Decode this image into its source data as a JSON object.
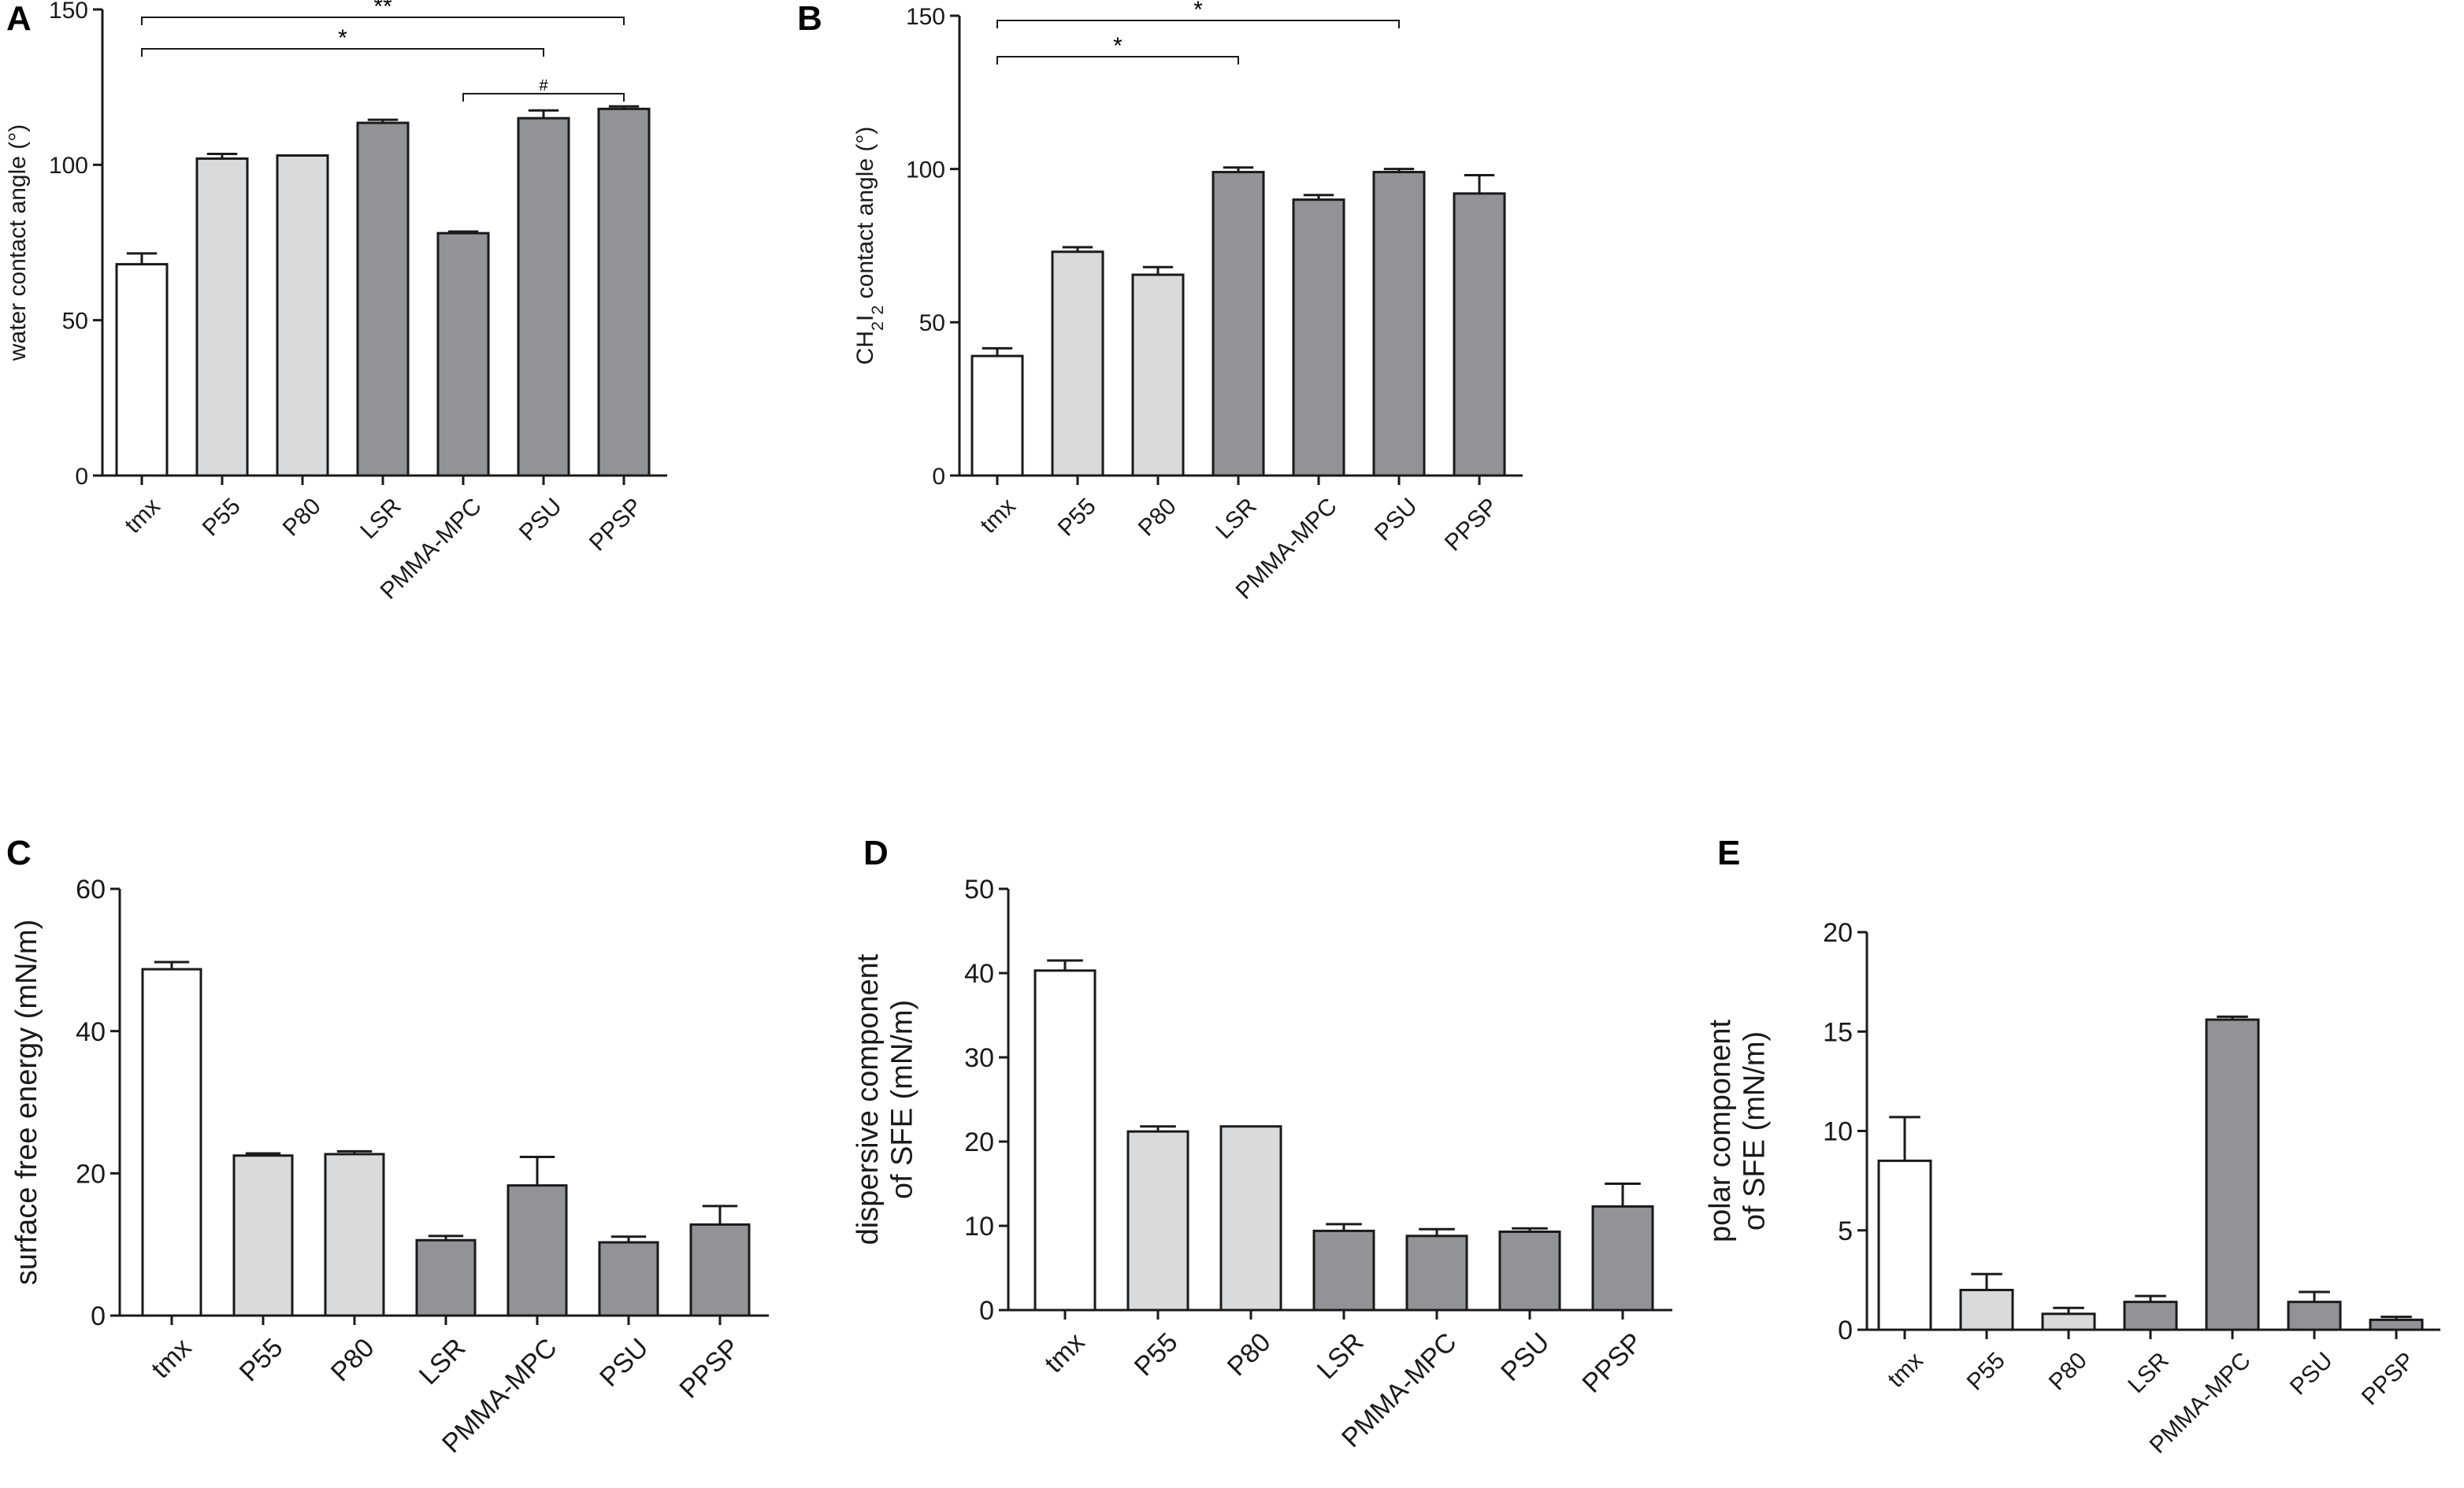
{
  "figure": {
    "colors": {
      "tmx": "#ffffff",
      "light": "#d9dadc",
      "dark": "#929397",
      "stroke": "#1a1a1a"
    }
  },
  "chart_data": [
    {
      "panel": "A",
      "type": "bar",
      "ylabel": "water contact angle (°)",
      "ylim": [
        0,
        150
      ],
      "yticks": [
        0,
        50,
        100,
        150
      ],
      "categories": [
        "tmx",
        "P55",
        "P80",
        "LSR",
        "PMMA-MPC",
        "PSU",
        "PPSP"
      ],
      "values": [
        68,
        102,
        103,
        113.5,
        78,
        115,
        118
      ],
      "errors": [
        3.5,
        1.5,
        0,
        1,
        0.5,
        2.5,
        0.8
      ],
      "bar_colors": [
        "tmx",
        "light",
        "light",
        "dark",
        "dark",
        "dark",
        "dark"
      ],
      "significance": [
        {
          "from": 0,
          "to": 6,
          "label": "**"
        },
        {
          "from": 0,
          "to": 5,
          "label": "*"
        },
        {
          "from": 4,
          "to": 6,
          "label": "#"
        }
      ]
    },
    {
      "panel": "B",
      "type": "bar",
      "ylabel_parts": [
        "CH",
        "2",
        "I",
        "2",
        " contact angle (°)"
      ],
      "ylim": [
        0,
        150
      ],
      "yticks": [
        0,
        50,
        100,
        150
      ],
      "categories": [
        "tmx",
        "P55",
        "P80",
        "LSR",
        "PMMA-MPC",
        "PSU",
        "PPSP"
      ],
      "values": [
        39,
        73,
        65.5,
        99,
        90,
        99,
        92
      ],
      "errors": [
        2.5,
        1.5,
        2.5,
        1.5,
        1.5,
        1,
        6
      ],
      "bar_colors": [
        "tmx",
        "light",
        "light",
        "dark",
        "dark",
        "dark",
        "dark"
      ],
      "significance": [
        {
          "from": 0,
          "to": 5,
          "label": "*"
        },
        {
          "from": 0,
          "to": 3,
          "label": "*"
        }
      ]
    },
    {
      "panel": "C",
      "type": "bar",
      "ylabel": "surface free energy (mN/m)",
      "ylim": [
        0,
        60
      ],
      "yticks": [
        0,
        20,
        40,
        60
      ],
      "categories": [
        "tmx",
        "P55",
        "P80",
        "LSR",
        "PMMA-MPC",
        "PSU",
        "PPSP"
      ],
      "values": [
        48.7,
        22.5,
        22.7,
        10.6,
        18.3,
        10.3,
        12.8
      ],
      "errors": [
        1.0,
        0.3,
        0.4,
        0.6,
        4.0,
        0.8,
        2.6
      ],
      "bar_colors": [
        "tmx",
        "light",
        "light",
        "dark",
        "dark",
        "dark",
        "dark"
      ],
      "significance": []
    },
    {
      "panel": "D",
      "type": "bar",
      "ylabel_lines": [
        "dispersive component",
        "of SFE (mN/m)"
      ],
      "ylim": [
        0,
        50
      ],
      "yticks": [
        0,
        10,
        20,
        30,
        40,
        50
      ],
      "categories": [
        "tmx",
        "P55",
        "P80",
        "LSR",
        "PMMA-MPC",
        "PSU",
        "PPSP"
      ],
      "values": [
        40.3,
        21.2,
        21.8,
        9.4,
        8.8,
        9.3,
        12.3
      ],
      "errors": [
        1.2,
        0.6,
        0,
        0.8,
        0.8,
        0.4,
        2.7
      ],
      "bar_colors": [
        "tmx",
        "light",
        "light",
        "dark",
        "dark",
        "dark",
        "dark"
      ],
      "significance": []
    },
    {
      "panel": "E",
      "type": "bar",
      "ylabel_lines": [
        "polar component",
        "of SFE (mN/m)"
      ],
      "ylim": [
        0,
        20
      ],
      "yticks": [
        0,
        5,
        10,
        15,
        20
      ],
      "categories": [
        "tmx",
        "P55",
        "P80",
        "LSR",
        "PMMA-MPC",
        "PSU",
        "PPSP"
      ],
      "values": [
        8.5,
        2.0,
        0.8,
        1.4,
        15.6,
        1.4,
        0.5
      ],
      "errors": [
        2.2,
        0.8,
        0.3,
        0.3,
        0.15,
        0.5,
        0.15
      ],
      "bar_colors": [
        "tmx",
        "light",
        "light",
        "dark",
        "dark",
        "dark",
        "dark"
      ],
      "significance": []
    }
  ]
}
